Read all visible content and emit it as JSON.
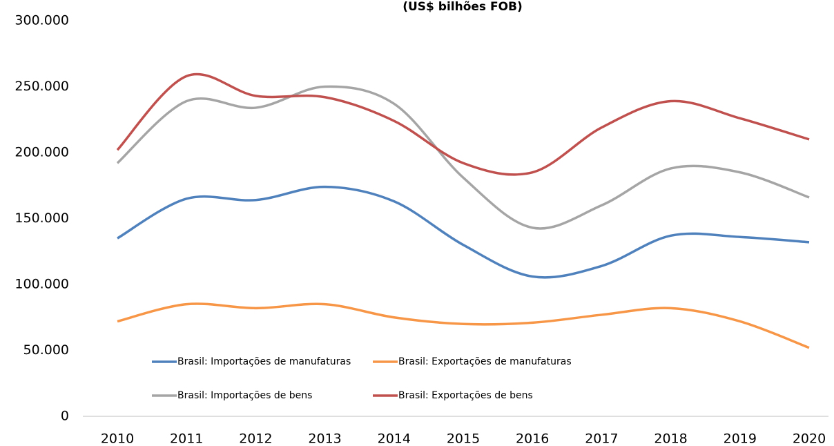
{
  "chart_data": {
    "type": "line",
    "title": "(US$ bilhões FOB)",
    "categories": [
      "2010",
      "2011",
      "2012",
      "2013",
      "2014",
      "2015",
      "2016",
      "2017",
      "2018",
      "2019",
      "2020"
    ],
    "series": [
      {
        "name": "Brasil: Importações de manufaturas",
        "color": "#4f81bd",
        "values": [
          135000,
          165000,
          164000,
          174000,
          163000,
          130000,
          106000,
          114000,
          137000,
          136000,
          132000
        ]
      },
      {
        "name": "Brasil: Exportações de manufaturas",
        "color": "#f79646",
        "values": [
          72000,
          85000,
          82000,
          85000,
          75000,
          70000,
          71000,
          77000,
          82000,
          72000,
          52000
        ]
      },
      {
        "name": "Brasil: Importações de bens",
        "color": "#a5a5a5",
        "values": [
          192000,
          239000,
          234000,
          250000,
          237000,
          181000,
          143000,
          160000,
          188000,
          185000,
          166000
        ]
      },
      {
        "name": "Brasil: Exportações de bens",
        "color": "#c0504d",
        "values": [
          202000,
          258000,
          243000,
          242000,
          224000,
          192000,
          185000,
          219000,
          239000,
          226000,
          210000
        ]
      }
    ],
    "ylim": [
      0,
      300000
    ],
    "yticks": [
      0,
      {
        "value": 50000,
        "label": "50.000"
      },
      {
        "value": 100000,
        "label": "100.000"
      },
      {
        "value": 150000,
        "label": "150.000"
      },
      {
        "value": 200000,
        "label": "200.000"
      },
      {
        "value": 250000,
        "label": "250.000"
      },
      {
        "value": 300000,
        "label": "300.000"
      }
    ],
    "smooth": true
  }
}
